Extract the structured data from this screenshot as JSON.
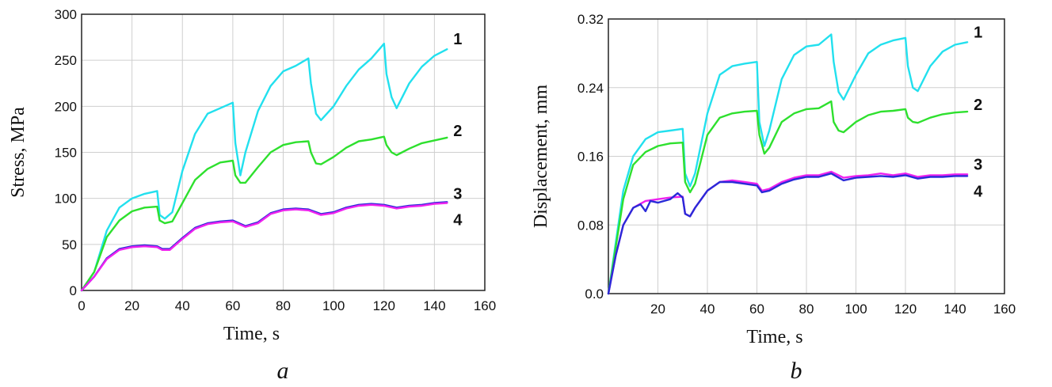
{
  "chart_data": [
    {
      "type": "line",
      "panel_label": "a",
      "xlabel": "Time, s",
      "ylabel": "Stress, MPa",
      "xlim": [
        0,
        160
      ],
      "ylim": [
        0,
        300
      ],
      "xticks": [
        0,
        20,
        40,
        60,
        80,
        100,
        120,
        140,
        160
      ],
      "yticks": [
        0,
        50,
        100,
        150,
        200,
        250,
        300
      ],
      "ytick_labels": [
        "0",
        "50",
        "100",
        "150",
        "200",
        "250",
        "300"
      ],
      "grid": true,
      "series": [
        {
          "label": "1",
          "color": "#22e0ee",
          "x": [
            0,
            5,
            10,
            15,
            20,
            25,
            30,
            31,
            33,
            36,
            40,
            45,
            50,
            55,
            60,
            61,
            63,
            65,
            70,
            75,
            80,
            85,
            90,
            91,
            93,
            95,
            100,
            105,
            110,
            115,
            120,
            121,
            123,
            125,
            130,
            135,
            140,
            145
          ],
          "y": [
            0,
            20,
            65,
            90,
            100,
            105,
            108,
            82,
            78,
            85,
            130,
            170,
            192,
            198,
            204,
            160,
            125,
            150,
            195,
            222,
            238,
            244,
            252,
            225,
            192,
            185,
            200,
            222,
            240,
            252,
            268,
            235,
            210,
            198,
            225,
            243,
            255,
            262
          ]
        },
        {
          "label": "2",
          "color": "#2ee02e",
          "x": [
            0,
            5,
            10,
            15,
            20,
            25,
            30,
            31,
            33,
            36,
            40,
            45,
            50,
            55,
            60,
            61,
            63,
            65,
            70,
            75,
            80,
            85,
            90,
            91,
            93,
            95,
            100,
            105,
            110,
            115,
            120,
            121,
            123,
            125,
            130,
            135,
            140,
            145
          ],
          "y": [
            0,
            20,
            58,
            76,
            86,
            90,
            91,
            76,
            73,
            75,
            95,
            120,
            132,
            139,
            141,
            125,
            117,
            117,
            134,
            150,
            158,
            161,
            162,
            150,
            138,
            137,
            145,
            155,
            162,
            164,
            167,
            158,
            150,
            147,
            154,
            160,
            163,
            166
          ]
        },
        {
          "label": "3",
          "color": "#2a2ad8",
          "x": [
            0,
            5,
            10,
            15,
            20,
            25,
            30,
            32,
            35,
            40,
            45,
            50,
            55,
            60,
            65,
            70,
            75,
            80,
            85,
            90,
            95,
            100,
            105,
            110,
            115,
            120,
            125,
            130,
            135,
            140,
            145
          ],
          "y": [
            0,
            15,
            35,
            45,
            48,
            49,
            48,
            45,
            45,
            57,
            68,
            73,
            75,
            76,
            70,
            74,
            84,
            88,
            89,
            88,
            83,
            85,
            90,
            93,
            94,
            93,
            90,
            92,
            93,
            95,
            96
          ]
        },
        {
          "label": "4",
          "color": "#ee22ee",
          "x": [
            0,
            5,
            10,
            15,
            20,
            25,
            30,
            32,
            35,
            40,
            45,
            50,
            55,
            60,
            65,
            70,
            75,
            80,
            85,
            90,
            95,
            100,
            105,
            110,
            115,
            120,
            125,
            130,
            135,
            140,
            145
          ],
          "y": [
            0,
            15,
            34,
            44,
            47,
            48,
            47,
            44,
            44,
            56,
            67,
            72,
            74,
            75,
            69,
            73,
            83,
            87,
            88,
            87,
            82,
            84,
            89,
            92,
            93,
            92,
            89,
            91,
            92,
            94,
            95
          ]
        }
      ]
    },
    {
      "type": "line",
      "panel_label": "b",
      "xlabel": "Time, s",
      "ylabel": "Displacement, mm",
      "xlim": [
        0,
        160
      ],
      "ylim": [
        0,
        0.32
      ],
      "xticks": [
        20,
        40,
        60,
        80,
        100,
        120,
        140,
        160
      ],
      "yticks": [
        0,
        0.08,
        0.16,
        0.24,
        0.32
      ],
      "ytick_labels": [
        "0.0",
        "0.08",
        "0.16",
        "0.24",
        "0.32"
      ],
      "grid": true,
      "series": [
        {
          "label": "1",
          "color": "#22e0ee",
          "x": [
            0,
            3,
            6,
            10,
            15,
            20,
            25,
            30,
            31,
            33,
            35,
            40,
            45,
            50,
            55,
            60,
            61,
            63,
            65,
            70,
            75,
            80,
            85,
            90,
            91,
            93,
            95,
            100,
            105,
            110,
            115,
            120,
            121,
            123,
            125,
            130,
            135,
            140,
            145
          ],
          "y": [
            0,
            0.06,
            0.12,
            0.16,
            0.18,
            0.188,
            0.19,
            0.192,
            0.14,
            0.125,
            0.14,
            0.21,
            0.255,
            0.265,
            0.268,
            0.27,
            0.2,
            0.172,
            0.19,
            0.25,
            0.278,
            0.288,
            0.29,
            0.302,
            0.27,
            0.235,
            0.226,
            0.255,
            0.28,
            0.29,
            0.295,
            0.298,
            0.265,
            0.24,
            0.236,
            0.265,
            0.282,
            0.29,
            0.293
          ]
        },
        {
          "label": "2",
          "color": "#2ee02e",
          "x": [
            0,
            3,
            6,
            10,
            15,
            20,
            25,
            30,
            31,
            33,
            35,
            40,
            45,
            50,
            55,
            60,
            61,
            63,
            65,
            70,
            75,
            80,
            85,
            90,
            91,
            93,
            95,
            100,
            105,
            110,
            115,
            120,
            121,
            123,
            125,
            130,
            135,
            140,
            145
          ],
          "y": [
            0,
            0.055,
            0.11,
            0.15,
            0.165,
            0.172,
            0.175,
            0.176,
            0.13,
            0.118,
            0.128,
            0.185,
            0.205,
            0.21,
            0.212,
            0.213,
            0.185,
            0.163,
            0.17,
            0.2,
            0.21,
            0.215,
            0.216,
            0.224,
            0.2,
            0.19,
            0.188,
            0.2,
            0.208,
            0.212,
            0.213,
            0.215,
            0.205,
            0.2,
            0.199,
            0.205,
            0.209,
            0.211,
            0.212
          ]
        },
        {
          "label": "3",
          "color": "#ee22ee",
          "x": [
            0,
            3,
            6,
            10,
            15,
            20,
            25,
            30,
            31,
            33,
            35,
            40,
            45,
            50,
            55,
            60,
            62,
            65,
            70,
            75,
            80,
            85,
            90,
            95,
            100,
            105,
            110,
            115,
            120,
            125,
            130,
            135,
            140,
            145
          ],
          "y": [
            0,
            0.045,
            0.08,
            0.1,
            0.108,
            0.11,
            0.112,
            0.113,
            0.093,
            0.09,
            0.1,
            0.12,
            0.13,
            0.132,
            0.13,
            0.128,
            0.12,
            0.122,
            0.13,
            0.135,
            0.138,
            0.138,
            0.142,
            0.135,
            0.137,
            0.138,
            0.14,
            0.138,
            0.14,
            0.136,
            0.138,
            0.138,
            0.139,
            0.139
          ]
        },
        {
          "label": "4",
          "color": "#2a2ad8",
          "x": [
            0,
            3,
            6,
            10,
            13,
            15,
            17,
            20,
            25,
            28,
            30,
            31,
            33,
            35,
            40,
            45,
            50,
            55,
            60,
            62,
            65,
            70,
            75,
            80,
            85,
            90,
            95,
            100,
            105,
            110,
            115,
            120,
            125,
            130,
            135,
            140,
            145
          ],
          "y": [
            0,
            0.045,
            0.08,
            0.1,
            0.104,
            0.096,
            0.108,
            0.106,
            0.11,
            0.117,
            0.112,
            0.093,
            0.09,
            0.1,
            0.12,
            0.13,
            0.13,
            0.128,
            0.126,
            0.118,
            0.12,
            0.128,
            0.133,
            0.136,
            0.136,
            0.14,
            0.132,
            0.135,
            0.136,
            0.137,
            0.136,
            0.138,
            0.134,
            0.136,
            0.136,
            0.137,
            0.137
          ]
        }
      ]
    }
  ]
}
